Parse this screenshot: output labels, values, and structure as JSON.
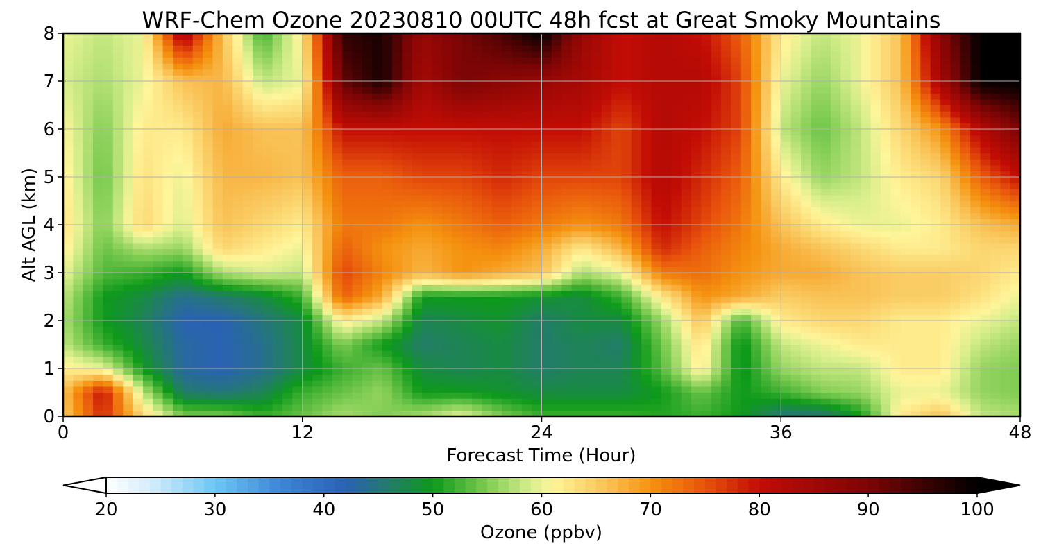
{
  "chart_data": {
    "type": "heatmap",
    "title": "WRF-Chem Ozone  20230810 00UTC 48h fcst at Great Smoky Mountains",
    "xlabel": "Forecast Time (Hour)",
    "ylabel": "Alt AGL (km)",
    "xlim": [
      0,
      48
    ],
    "ylim": [
      0,
      8
    ],
    "xticks": [
      "0",
      "12",
      "24",
      "36",
      "48"
    ],
    "yticks": [
      "0",
      "1",
      "2",
      "3",
      "4",
      "5",
      "6",
      "7",
      "8"
    ],
    "grid": true,
    "colorbar": {
      "label": "Ozone  (ppbv)",
      "range": [
        20,
        100
      ],
      "ticks": [
        "20",
        "30",
        "40",
        "50",
        "60",
        "70",
        "80",
        "90",
        "100"
      ],
      "extend": "both",
      "placement": "bottom",
      "stops": [
        [
          20,
          "#ffffff"
        ],
        [
          24,
          "#d6eefa"
        ],
        [
          30,
          "#6cc6f5"
        ],
        [
          36,
          "#3d86d6"
        ],
        [
          42,
          "#2a62b3"
        ],
        [
          46,
          "#237c6a"
        ],
        [
          50,
          "#0e9a1a"
        ],
        [
          55,
          "#7fcc52"
        ],
        [
          59,
          "#d8ee8c"
        ],
        [
          61,
          "#fff59a"
        ],
        [
          66,
          "#f9c256"
        ],
        [
          70,
          "#f5920f"
        ],
        [
          75,
          "#e8530c"
        ],
        [
          80,
          "#c20c05"
        ],
        [
          90,
          "#7c0505"
        ],
        [
          100,
          "#000000"
        ]
      ]
    },
    "z_heights_km": [
      0,
      0.5,
      1,
      1.5,
      2,
      2.5,
      3,
      3.5,
      4,
      5,
      6,
      7,
      8
    ],
    "times_h": [
      0,
      2,
      4,
      6,
      8,
      10,
      12,
      14,
      16,
      18,
      20,
      22,
      24,
      26,
      28,
      30,
      32,
      34,
      36,
      38,
      40,
      42,
      44,
      46,
      48
    ],
    "ozone_ppbv": [
      [
        65,
        78,
        64,
        55,
        55,
        52,
        54,
        57,
        55,
        57,
        60,
        55,
        52,
        52,
        52,
        51,
        52,
        50,
        45,
        45,
        50,
        62,
        66,
        58,
        57
      ],
      [
        66,
        80,
        58,
        46,
        45,
        47,
        52,
        54,
        56,
        50,
        50,
        49,
        48,
        48,
        48,
        50,
        54,
        50,
        52,
        55,
        56,
        60,
        60,
        56,
        55
      ],
      [
        62,
        60,
        50,
        43,
        42,
        44,
        48,
        52,
        54,
        48,
        47,
        48,
        46,
        47,
        47,
        53,
        62,
        49,
        56,
        58,
        58,
        62,
        62,
        56,
        55
      ],
      [
        58,
        52,
        48,
        43,
        42,
        44,
        48,
        55,
        50,
        46,
        47,
        48,
        46,
        47,
        46,
        54,
        63,
        49,
        58,
        60,
        62,
        62,
        62,
        58,
        56
      ],
      [
        57,
        50,
        47,
        42,
        42,
        45,
        48,
        62,
        58,
        47,
        48,
        49,
        46,
        48,
        48,
        56,
        66,
        52,
        62,
        64,
        64,
        62,
        62,
        60,
        58
      ],
      [
        58,
        50,
        48,
        44,
        46,
        48,
        52,
        74,
        68,
        50,
        50,
        50,
        49,
        48,
        52,
        62,
        70,
        68,
        65,
        66,
        66,
        65,
        65,
        63,
        60
      ],
      [
        60,
        53,
        52,
        50,
        57,
        59,
        58,
        76,
        71,
        67,
        70,
        68,
        66,
        57,
        60,
        72,
        73,
        70,
        68,
        68,
        66,
        65,
        65,
        64,
        62
      ],
      [
        62,
        54,
        57,
        56,
        64,
        62,
        60,
        74,
        70,
        68,
        70,
        71,
        68,
        62,
        67,
        78,
        74,
        71,
        68,
        66,
        64,
        62,
        62,
        64,
        64
      ],
      [
        63,
        55,
        64,
        59,
        66,
        64,
        62,
        72,
        72,
        70,
        72,
        74,
        72,
        70,
        72,
        80,
        76,
        72,
        66,
        62,
        60,
        60,
        62,
        66,
        68
      ],
      [
        62,
        54,
        63,
        60,
        67,
        67,
        66,
        74,
        74,
        76,
        76,
        78,
        76,
        76,
        76,
        82,
        78,
        74,
        62,
        56,
        58,
        62,
        64,
        74,
        80
      ],
      [
        61,
        55,
        62,
        62,
        68,
        66,
        66,
        80,
        80,
        80,
        80,
        80,
        80,
        80,
        76,
        82,
        80,
        76,
        58,
        54,
        58,
        64,
        70,
        82,
        90
      ],
      [
        59,
        57,
        60,
        66,
        67,
        58,
        60,
        92,
        98,
        84,
        90,
        88,
        86,
        84,
        80,
        82,
        82,
        76,
        60,
        56,
        60,
        66,
        84,
        100,
        100
      ],
      [
        60,
        58,
        60,
        84,
        66,
        52,
        62,
        96,
        98,
        86,
        90,
        94,
        100,
        86,
        80,
        82,
        80,
        74,
        62,
        58,
        60,
        66,
        88,
        100,
        100
      ]
    ]
  }
}
